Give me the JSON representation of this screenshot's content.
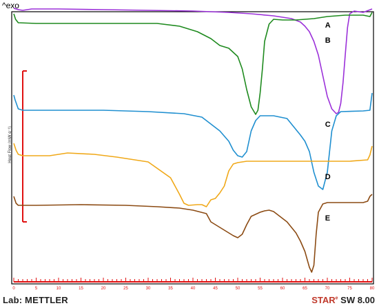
{
  "header": {
    "exo_label": "^exo"
  },
  "footer": {
    "lab_text": "Lab: METTLER",
    "software_brand": "STAR",
    "software_mark": "e",
    "software_version": " SW 8.00"
  },
  "chart_data": {
    "type": "line",
    "ylabel": "Heat Flow (mW g⁻¹)",
    "xlim": [
      0,
      80
    ],
    "x_tick_labels": [
      "0",
      "5",
      "10",
      "15",
      "20",
      "25",
      "30",
      "35",
      "40",
      "45",
      "50",
      "55",
      "60",
      "65",
      "70",
      "75",
      "80"
    ],
    "grid": false,
    "colors": {
      "A": "#9b30d9",
      "B": "#1e8a1e",
      "C": "#1f8fd0",
      "D": "#f0a818",
      "E": "#8b4a12",
      "axis": "#e01010"
    },
    "series": [
      {
        "name": "A",
        "points": [
          [
            0,
            12
          ],
          [
            1,
            14
          ],
          [
            2,
            15
          ],
          [
            4,
            13
          ],
          [
            10,
            13
          ],
          [
            20,
            14
          ],
          [
            30,
            15
          ],
          [
            40,
            16
          ],
          [
            48,
            18
          ],
          [
            53,
            20
          ],
          [
            58,
            23
          ],
          [
            62,
            27
          ],
          [
            64,
            32
          ],
          [
            65,
            38
          ],
          [
            66,
            46
          ],
          [
            67,
            60
          ],
          [
            68,
            80
          ],
          [
            69,
            110
          ],
          [
            70,
            140
          ],
          [
            71,
            158
          ],
          [
            72,
            165
          ],
          [
            72.5,
            163
          ],
          [
            73,
            150
          ],
          [
            73.5,
            120
          ],
          [
            74,
            80
          ],
          [
            74.5,
            40
          ],
          [
            75,
            20
          ],
          [
            76,
            16
          ],
          [
            78,
            18
          ],
          [
            80,
            13
          ]
        ],
        "label_x": 69.5,
        "label_y": 28
      },
      {
        "name": "B",
        "points": [
          [
            0,
            20
          ],
          [
            0.4,
            28
          ],
          [
            1,
            33
          ],
          [
            5,
            34
          ],
          [
            15,
            34
          ],
          [
            25,
            34
          ],
          [
            32,
            34
          ],
          [
            37,
            38
          ],
          [
            41,
            46
          ],
          [
            44,
            56
          ],
          [
            46,
            66
          ],
          [
            48,
            70
          ],
          [
            50,
            82
          ],
          [
            51,
            100
          ],
          [
            52,
            130
          ],
          [
            53,
            155
          ],
          [
            54,
            166
          ],
          [
            54.5,
            160
          ],
          [
            55,
            135
          ],
          [
            55.5,
            100
          ],
          [
            56,
            60
          ],
          [
            57,
            35
          ],
          [
            58,
            28
          ],
          [
            60,
            29
          ],
          [
            63,
            29
          ],
          [
            67,
            27
          ],
          [
            70,
            24
          ],
          [
            74,
            22
          ],
          [
            78,
            22
          ],
          [
            79.5,
            24
          ],
          [
            80,
            18
          ]
        ],
        "label_x": 69.5,
        "label_y": 50
      },
      {
        "name": "C",
        "points": [
          [
            0,
            138
          ],
          [
            0.3,
            145
          ],
          [
            1,
            158
          ],
          [
            2,
            160
          ],
          [
            10,
            160
          ],
          [
            20,
            160
          ],
          [
            30,
            162
          ],
          [
            38,
            165
          ],
          [
            42,
            170
          ],
          [
            44,
            180
          ],
          [
            46,
            190
          ],
          [
            48,
            205
          ],
          [
            49,
            218
          ],
          [
            50,
            226
          ],
          [
            51,
            228
          ],
          [
            52,
            220
          ],
          [
            53,
            190
          ],
          [
            54,
            175
          ],
          [
            55,
            168
          ],
          [
            58,
            168
          ],
          [
            61,
            172
          ],
          [
            62,
            180
          ],
          [
            63,
            188
          ],
          [
            64,
            196
          ],
          [
            65,
            205
          ],
          [
            66,
            220
          ],
          [
            67,
            250
          ],
          [
            68,
            270
          ],
          [
            69,
            275
          ],
          [
            70,
            250
          ],
          [
            71,
            190
          ],
          [
            72,
            168
          ],
          [
            73,
            162
          ],
          [
            78,
            161
          ],
          [
            79.5,
            160
          ],
          [
            80,
            135
          ]
        ],
        "label_x": 69.5,
        "label_y": 172
      },
      {
        "name": "D",
        "points": [
          [
            0,
            208
          ],
          [
            0.5,
            218
          ],
          [
            1,
            224
          ],
          [
            2,
            226
          ],
          [
            8,
            226
          ],
          [
            12,
            222
          ],
          [
            18,
            224
          ],
          [
            23,
            228
          ],
          [
            30,
            235
          ],
          [
            35,
            258
          ],
          [
            37,
            282
          ],
          [
            38,
            295
          ],
          [
            39,
            298
          ],
          [
            41,
            297
          ],
          [
            42,
            297
          ],
          [
            43,
            300
          ],
          [
            44,
            290
          ],
          [
            45,
            288
          ],
          [
            46,
            280
          ],
          [
            47,
            270
          ],
          [
            48,
            248
          ],
          [
            49,
            238
          ],
          [
            50,
            236
          ],
          [
            52,
            234
          ],
          [
            55,
            234
          ],
          [
            58,
            234
          ],
          [
            65,
            234
          ],
          [
            70,
            234
          ],
          [
            75,
            234
          ],
          [
            79,
            232
          ],
          [
            79.5,
            225
          ],
          [
            80,
            212
          ]
        ],
        "label_x": 69.5,
        "label_y": 248
      },
      {
        "name": "E",
        "points": [
          [
            0,
            285
          ],
          [
            0.5,
            295
          ],
          [
            1,
            298
          ],
          [
            5,
            298
          ],
          [
            15,
            297
          ],
          [
            25,
            298
          ],
          [
            32,
            300
          ],
          [
            37,
            302
          ],
          [
            40,
            305
          ],
          [
            43,
            310
          ],
          [
            44,
            322
          ],
          [
            45,
            326
          ],
          [
            47,
            334
          ],
          [
            49,
            342
          ],
          [
            50,
            345
          ],
          [
            51,
            340
          ],
          [
            52,
            326
          ],
          [
            53,
            314
          ],
          [
            55,
            308
          ],
          [
            56,
            306
          ],
          [
            57,
            305
          ],
          [
            58,
            307
          ],
          [
            59,
            312
          ],
          [
            61,
            322
          ],
          [
            63,
            338
          ],
          [
            64,
            350
          ],
          [
            65,
            365
          ],
          [
            66,
            388
          ],
          [
            66.5,
            395
          ],
          [
            67,
            385
          ],
          [
            67.5,
            340
          ],
          [
            68,
            308
          ],
          [
            69,
            296
          ],
          [
            70,
            294
          ],
          [
            74,
            294
          ],
          [
            78,
            294
          ],
          [
            79,
            292
          ],
          [
            79.5,
            285
          ],
          [
            80,
            282
          ]
        ],
        "label_x": 69.5,
        "label_y": 308
      }
    ]
  }
}
